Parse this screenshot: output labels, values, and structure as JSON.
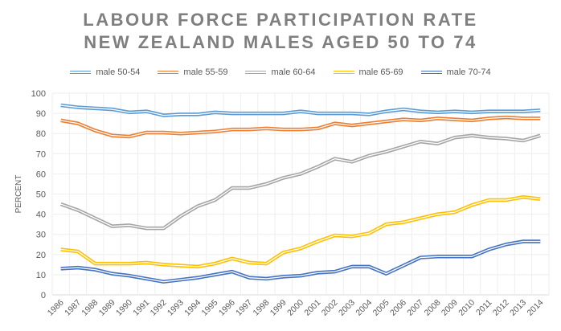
{
  "chart_data": {
    "type": "line",
    "title": [
      "LABOUR FORCE PARTICIPATION RATE",
      "NEW ZEALAND MALES AGED 50 TO 74"
    ],
    "xlabel": "",
    "ylabel": "PERCENT",
    "ylim": [
      0,
      100
    ],
    "yticks": [
      0,
      10,
      20,
      30,
      40,
      50,
      60,
      70,
      80,
      90,
      100
    ],
    "grid": true,
    "legend_position": "top",
    "x": [
      "1986",
      "1987",
      "1988",
      "1989",
      "1990",
      "1991",
      "1992",
      "1993",
      "1994",
      "1995",
      "1996",
      "1997",
      "1998",
      "1999",
      "2000",
      "2001",
      "2002",
      "2003",
      "2004",
      "2005",
      "2006",
      "2007",
      "2008",
      "2009",
      "2010",
      "2011",
      "2012",
      "2013",
      "2014"
    ],
    "series": [
      {
        "name": "male 50-54",
        "color": "#5B9BD5",
        "values": [
          94,
          93,
          92.5,
          92,
          90.5,
          91,
          89,
          89.5,
          89.5,
          90.5,
          90,
          90,
          90,
          90,
          91,
          90,
          90,
          90,
          89.5,
          91,
          92,
          91,
          90.5,
          91,
          90.5,
          91,
          91,
          91,
          91.5
        ]
      },
      {
        "name": "male 55-59",
        "color": "#ED7D31",
        "values": [
          86.5,
          85,
          81.5,
          79,
          78.5,
          80.5,
          80.5,
          80,
          80.5,
          81,
          82,
          82,
          82.5,
          82,
          82,
          82.5,
          85,
          84,
          85,
          86,
          87,
          86.5,
          87.5,
          87,
          86.5,
          87.5,
          88,
          87.5,
          87.5
        ]
      },
      {
        "name": "male 60-64",
        "color": "#A5A5A5",
        "values": [
          45,
          42,
          38,
          34,
          34.5,
          33,
          33,
          39,
          44,
          47,
          53,
          53,
          55,
          58,
          60,
          63.5,
          67.5,
          66,
          69,
          71,
          73.5,
          76,
          75,
          78,
          79,
          78,
          77.5,
          76.5,
          79
        ]
      },
      {
        "name": "male 65-69",
        "color": "#FFC000",
        "values": [
          22.5,
          21.5,
          15.5,
          15.5,
          15.5,
          16,
          15,
          14.5,
          14,
          15.5,
          18,
          16,
          15.5,
          21,
          23,
          26.5,
          29.5,
          29,
          30.5,
          35,
          36,
          38,
          40,
          41,
          44.5,
          47,
          47,
          48.5,
          47.5
        ]
      },
      {
        "name": "male 70-74",
        "color": "#4472C4",
        "values": [
          13,
          13.5,
          12.5,
          10.5,
          9.5,
          8,
          6.5,
          7.5,
          8.5,
          10,
          11.5,
          8.5,
          8,
          9,
          9.5,
          11,
          11.5,
          14,
          14,
          10.5,
          14.5,
          18.5,
          19,
          19,
          19,
          22.5,
          25,
          26.5,
          26.5
        ]
      }
    ]
  }
}
